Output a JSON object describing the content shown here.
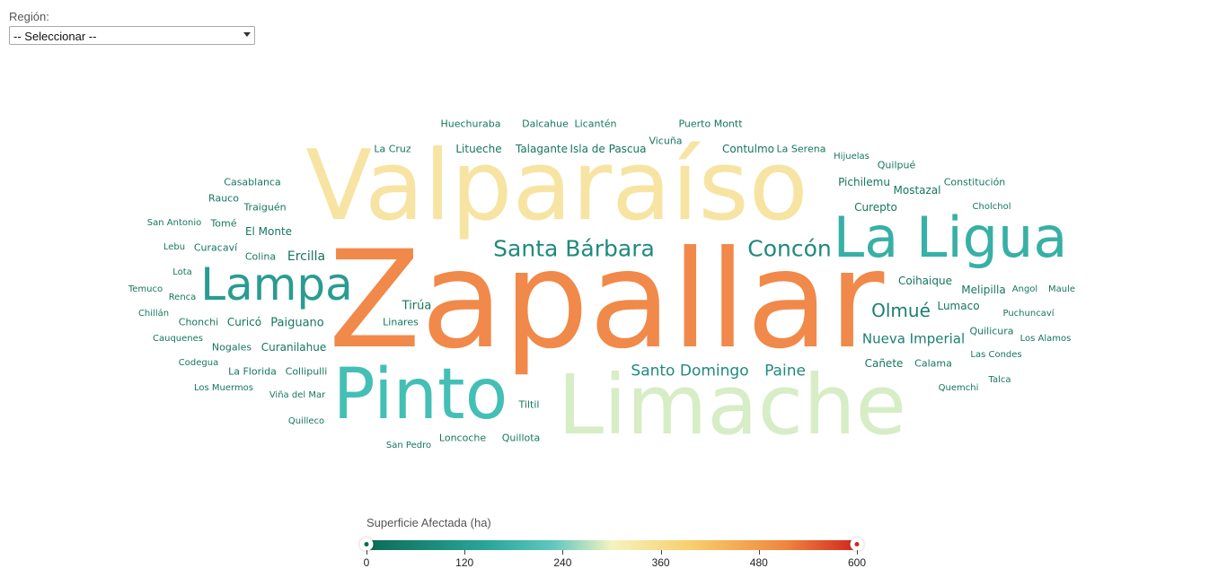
{
  "filter": {
    "label": "Región:",
    "selected": "-- Seleccionar --"
  },
  "legend": {
    "title": "Superficie Afectada (ha)",
    "ticks": [
      "0",
      "120",
      "240",
      "360",
      "480",
      "600"
    ],
    "min": 0,
    "max": 600,
    "colors": [
      "#0b6b55",
      "#2aa79b",
      "#5fc7bf",
      "#f4f3bf",
      "#f8cf6c",
      "#f0883f",
      "#d1261e"
    ]
  },
  "cloud": {
    "words": [
      {
        "text": "Zapallar",
        "color": "#f0894a"
      },
      {
        "text": "Valparaíso",
        "color": "#f7e4a3"
      },
      {
        "text": "Limache",
        "color": "#d6edc6"
      },
      {
        "text": "Pinto",
        "color": "#44bfb5"
      },
      {
        "text": "La Ligua",
        "color": "#37b0a6"
      },
      {
        "text": "Lampa",
        "color": "#2a9c91"
      },
      {
        "text": "Santa Bárbara",
        "color": "#1f8a7e"
      },
      {
        "text": "Concón",
        "color": "#1f8a7e"
      },
      {
        "text": "Santo Domingo",
        "color": "#1f8a7e"
      },
      {
        "text": "Paine",
        "color": "#1f8a7e"
      },
      {
        "text": "Olmué",
        "color": "#1a7f72"
      },
      {
        "text": "Nueva Imperial",
        "color": "#1a7f72"
      },
      {
        "text": "Huechuraba",
        "color": "#16765f"
      },
      {
        "text": "Dalcahue",
        "color": "#16765f"
      },
      {
        "text": "Licantén",
        "color": "#16765f"
      },
      {
        "text": "Puerto Montt",
        "color": "#16765f"
      },
      {
        "text": "La Cruz",
        "color": "#16765f"
      },
      {
        "text": "Litueche",
        "color": "#16765f"
      },
      {
        "text": "Talagante",
        "color": "#16765f"
      },
      {
        "text": "Isla de Pascua",
        "color": "#16765f"
      },
      {
        "text": "Vicuña",
        "color": "#16765f"
      },
      {
        "text": "Contulmo",
        "color": "#16765f"
      },
      {
        "text": "La Serena",
        "color": "#16765f"
      },
      {
        "text": "Hijuelas",
        "color": "#16765f"
      },
      {
        "text": "Quilpué",
        "color": "#16765f"
      },
      {
        "text": "Casablanca",
        "color": "#16765f"
      },
      {
        "text": "Pichilemu",
        "color": "#16765f"
      },
      {
        "text": "Mostazal",
        "color": "#16765f"
      },
      {
        "text": "Constitución",
        "color": "#16765f"
      },
      {
        "text": "Rauco",
        "color": "#16765f"
      },
      {
        "text": "Traiguén",
        "color": "#16765f"
      },
      {
        "text": "Curepto",
        "color": "#16765f"
      },
      {
        "text": "Cholchol",
        "color": "#16765f"
      },
      {
        "text": "San Antonio",
        "color": "#16765f"
      },
      {
        "text": "Tomé",
        "color": "#16765f"
      },
      {
        "text": "El Monte",
        "color": "#16765f"
      },
      {
        "text": "Lebu",
        "color": "#16765f"
      },
      {
        "text": "Curacaví",
        "color": "#16765f"
      },
      {
        "text": "Colina",
        "color": "#16765f"
      },
      {
        "text": "Ercilla",
        "color": "#16765f"
      },
      {
        "text": "Lota",
        "color": "#16765f"
      },
      {
        "text": "Coihaique",
        "color": "#16765f"
      },
      {
        "text": "Temuco",
        "color": "#16765f"
      },
      {
        "text": "Renca",
        "color": "#16765f"
      },
      {
        "text": "Melipilla",
        "color": "#16765f"
      },
      {
        "text": "Angol",
        "color": "#16765f"
      },
      {
        "text": "Maule",
        "color": "#16765f"
      },
      {
        "text": "Tirúa",
        "color": "#16765f"
      },
      {
        "text": "Lumaco",
        "color": "#16765f"
      },
      {
        "text": "Chillán",
        "color": "#16765f"
      },
      {
        "text": "Chonchi",
        "color": "#16765f"
      },
      {
        "text": "Curicó",
        "color": "#16765f"
      },
      {
        "text": "Paiguano",
        "color": "#16765f"
      },
      {
        "text": "Linares",
        "color": "#16765f"
      },
      {
        "text": "Puchuncaví",
        "color": "#16765f"
      },
      {
        "text": "Quilicura",
        "color": "#16765f"
      },
      {
        "text": "Cauquenes",
        "color": "#16765f"
      },
      {
        "text": "Nogales",
        "color": "#16765f"
      },
      {
        "text": "Curanilahue",
        "color": "#16765f"
      },
      {
        "text": "Los Alamos",
        "color": "#16765f"
      },
      {
        "text": "Las Condes",
        "color": "#16765f"
      },
      {
        "text": "Codegua",
        "color": "#16765f"
      },
      {
        "text": "La Florida",
        "color": "#16765f"
      },
      {
        "text": "Collipulli",
        "color": "#16765f"
      },
      {
        "text": "Cañete",
        "color": "#16765f"
      },
      {
        "text": "Calama",
        "color": "#16765f"
      },
      {
        "text": "Talca",
        "color": "#16765f"
      },
      {
        "text": "Los Muermos",
        "color": "#16765f"
      },
      {
        "text": "Viña del Mar",
        "color": "#16765f"
      },
      {
        "text": "Quemchi",
        "color": "#16765f"
      },
      {
        "text": "Tiltil",
        "color": "#16765f"
      },
      {
        "text": "Quilleco",
        "color": "#16765f"
      },
      {
        "text": "Loncoche",
        "color": "#16765f"
      },
      {
        "text": "Quillota",
        "color": "#16765f"
      },
      {
        "text": "San Pedro",
        "color": "#16765f"
      }
    ]
  }
}
